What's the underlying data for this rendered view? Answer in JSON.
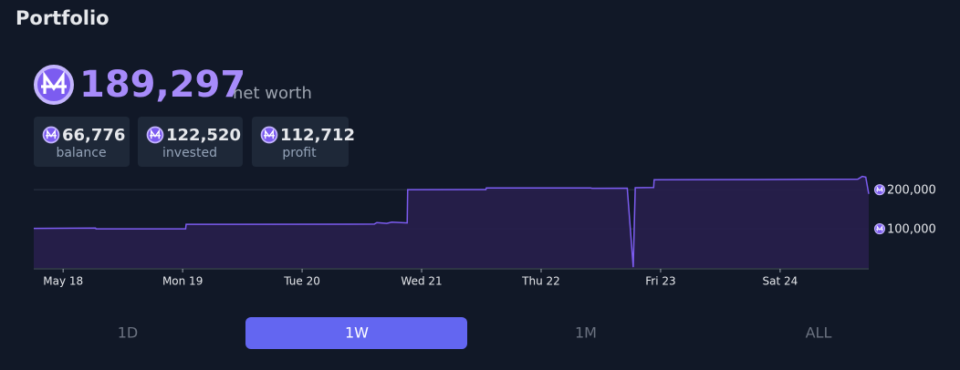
{
  "header": {
    "title": "Portfolio"
  },
  "summary": {
    "net_worth": "189,297",
    "net_worth_label": "net worth",
    "stats": [
      {
        "value": "66,776",
        "label": "balance"
      },
      {
        "value": "122,520",
        "label": "invested"
      },
      {
        "value": "112,712",
        "label": "profit"
      }
    ]
  },
  "chart_data": {
    "type": "area",
    "color": "#7c5cf0",
    "fill": "#281f4d",
    "x": [
      -5.9,
      6.5,
      6.6,
      24.6,
      24.7,
      62.5,
      63,
      65,
      66,
      69.1,
      69.2,
      84.9,
      85,
      106,
      106.2,
      113.3,
      114.5,
      114.9,
      118.6,
      118.7,
      140,
      159.6,
      160.5,
      161.2,
      161.8
    ],
    "values": [
      101000,
      102000,
      100000,
      100000,
      111500,
      112000,
      116000,
      114000,
      117000,
      115000,
      200000,
      200500,
      204500,
      204500,
      203500,
      204000,
      2000,
      205000,
      205500,
      225500,
      226000,
      227000,
      234000,
      232000,
      189297
    ],
    "xlim": [
      -5.9,
      161.8
    ],
    "xticks": [
      {
        "value": 0,
        "label": "May 18"
      },
      {
        "value": 24,
        "label": "Mon 19"
      },
      {
        "value": 48,
        "label": "Tue 20"
      },
      {
        "value": 72,
        "label": "Wed 21"
      },
      {
        "value": 96,
        "label": "Thu 22"
      },
      {
        "value": 120,
        "label": "Fri 23"
      },
      {
        "value": 144,
        "label": "Sat 24"
      }
    ],
    "ylim": [
      0,
      240000
    ],
    "yticks": [
      {
        "value": 100000,
        "label": "100,000"
      },
      {
        "value": 200000,
        "label": "200,000"
      }
    ],
    "grid": true
  },
  "ranges": {
    "options": [
      "1D",
      "1W",
      "1M",
      "ALL"
    ],
    "active": "1W"
  }
}
